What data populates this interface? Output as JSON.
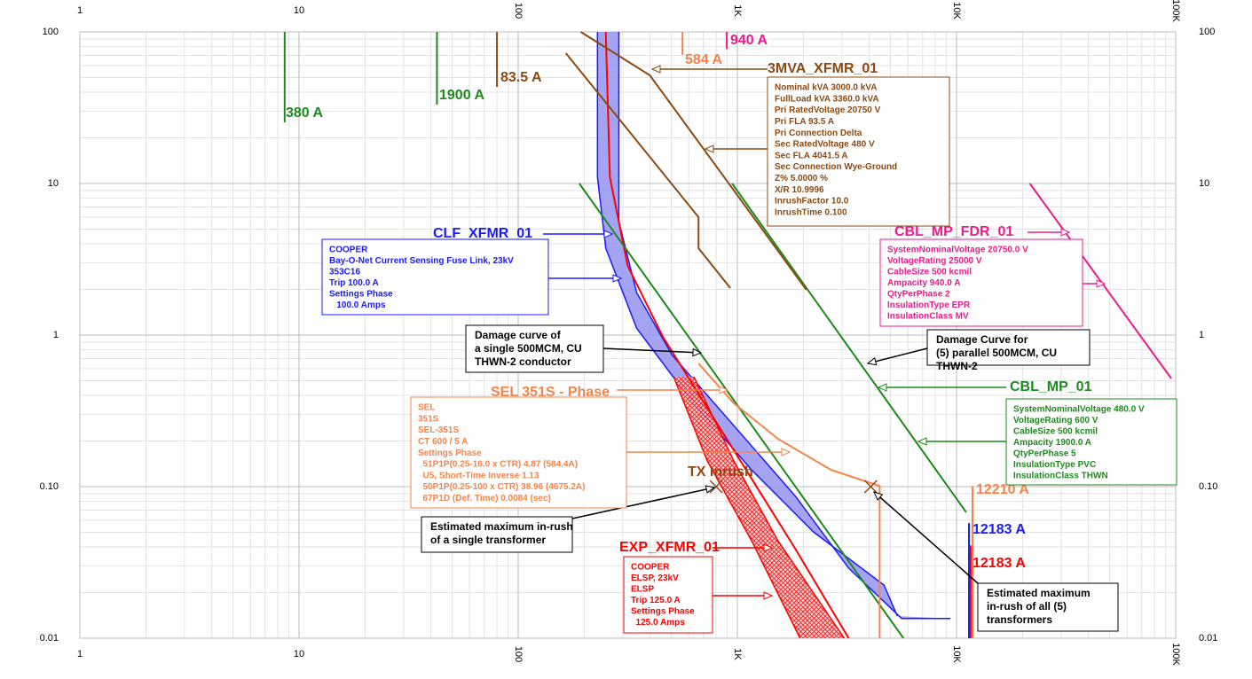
{
  "chart_data": {
    "type": "line",
    "xscale": "log",
    "yscale": "log",
    "grid": true,
    "xlim": [
      1,
      100000
    ],
    "ylim": [
      0.01,
      100
    ],
    "xticks": [
      1,
      10,
      100,
      {
        "value": 1000,
        "label": "1K"
      },
      {
        "value": 10000,
        "label": "10K"
      },
      {
        "value": 100000,
        "label": "100K"
      }
    ],
    "yticks": [
      0.01,
      {
        "value": 0.1,
        "label": "0.10"
      },
      1,
      10,
      100
    ],
    "series": [
      {
        "color": "#ff0000",
        "x": [
          251,
          262,
          316,
          458,
          729,
          1161,
          1846,
          3220
        ],
        "values": [
          100,
          11,
          2.86,
          0.97,
          0.331,
          0.113,
          0.0385,
          0.01
        ]
      },
      {
        "color": "#1e8a1e",
        "x": [
          190,
          5730
        ],
        "values": [
          10,
          0.01
        ]
      },
      {
        "color": "#1e8a1e",
        "x": [
          946,
          11070
        ],
        "values": [
          10,
          0.0677
        ]
      },
      {
        "color": "#8b4a14",
        "x": [
          193,
          399,
          2064
        ],
        "values": [
          100,
          51.7,
          1.99
        ]
      },
      {
        "color": "#8b4a14",
        "x": [
          165,
          665,
          665,
          929
        ],
        "values": [
          72.4,
          6.0,
          3.74,
          2.04
        ]
      },
      {
        "color": "#ee1b8c",
        "x": [
          21600,
          95500
        ],
        "values": [
          10,
          0.517
        ]
      },
      {
        "color": "#f5834a",
        "x": [
          665,
          963,
          1531,
          2675,
          4460,
          4460
        ],
        "values": [
          0.65,
          0.355,
          0.207,
          0.129,
          0.101,
          0.01
        ]
      },
      {
        "color": "#1e8a1e",
        "x": [
          8.6,
          8.6
        ],
        "values": [
          100,
          25.3
        ]
      },
      {
        "color": "#1e8a1e",
        "x": [
          42.6,
          42.6
        ],
        "values": [
          100,
          33.1
        ]
      },
      {
        "color": "#8b4a14",
        "x": [
          80,
          80
        ],
        "values": [
          100,
          43.4
        ]
      },
      {
        "color": "#f5834a",
        "x": [
          562,
          562
        ],
        "values": [
          100,
          70.5
        ]
      },
      {
        "color": "#ee1b8c",
        "x": [
          895,
          895
        ],
        "values": [
          100,
          77
        ]
      },
      {
        "color": "#f5834a",
        "x": [
          11830,
          11830
        ],
        "values": [
          0.101,
          0.01
        ]
      },
      {
        "color": "#1a1aff",
        "x": [
          11400,
          11400
        ],
        "values": [
          0.0575,
          0.01
        ]
      },
      {
        "color": "#ff0000",
        "x": [
          11600,
          11600
        ],
        "values": [
          0.041,
          0.01
        ]
      }
    ],
    "bands": [
      {
        "color": "#1a1aff",
        "fill": "#9a9af2",
        "edges": [
          {
            "x": [
              230,
              230,
              251,
              347,
              605,
              1161,
              2223,
              4670,
              5370
            ],
            "values": [
              100,
              11,
              3.74,
              1.11,
              0.38,
              0.129,
              0.0503,
              0.0224,
              0.014
            ]
          },
          {
            "x": [
              288,
              288,
              347,
              503,
              963,
              1846,
              3220,
              5620,
              9380
            ],
            "values": [
              100,
              5.6,
              1.91,
              0.74,
              0.253,
              0.086,
              0.029,
              0.0135,
              0.0135
            ]
          }
        ]
      },
      {
        "color": "#ff0000",
        "fill": "url(#hatch)",
        "edges": [
          {
            "x": [
              512,
              729,
              1161,
              1933
            ],
            "values": [
              0.531,
              0.148,
              0.044,
              0.01
            ]
          },
          {
            "x": [
              634,
              963,
              1531,
              3075
            ],
            "values": [
              0.531,
              0.148,
              0.044,
              0.01
            ]
          }
        ]
      }
    ],
    "markers": {
      "color": "#8b4a14",
      "x": [
        800,
        4060
      ],
      "values": [
        0.1,
        0.1
      ]
    },
    "labels": [
      {
        "text": "940 A",
        "color": "#ee1b8c"
      },
      {
        "text": "584 A",
        "color": "#f5834a"
      },
      {
        "text": "83.5 A",
        "color": "#8b4a14"
      },
      {
        "text": "1900 A",
        "color": "#1e8a1e"
      },
      {
        "text": "380 A",
        "color": "#1e8a1e"
      },
      {
        "text": "TX Inrush",
        "color": "#8b4a14"
      },
      {
        "text": "12210 A",
        "color": "#f5834a"
      },
      {
        "text": "12183 A",
        "color": "#1a1aff"
      },
      {
        "text": "12183 A",
        "color": "#ff0000"
      }
    ],
    "devices": [
      {
        "name": "3MVA_XFMR_01",
        "color": "#8b4a14",
        "lines": [
          "Nominal kVA 3000.0 kVA",
          "FullLoad kVA 3360.0 kVA",
          "Pri RatedVoltage 20750 V",
          "Pri FLA 93.5 A",
          "Pri Connection Delta",
          "Sec RatedVoltage 480 V",
          "Sec FLA 4041.5 A",
          "Sec Connection Wye-Ground",
          "Z% 5.0000 %",
          "X/R 10.9996",
          "InrushFactor 10.0",
          "InrushTime 0.100"
        ]
      },
      {
        "name": "CLF_XFMR_01",
        "color": "#1a1aff",
        "lines": [
          "COOPER",
          "Bay-O-Net Current Sensing Fuse Link, 23kV",
          "353C16",
          "Trip 100.0 A",
          "Settings Phase",
          "   100.0 Amps"
        ]
      },
      {
        "name": "CBL_MP_FDR_01",
        "color": "#ee1b8c",
        "lines": [
          "SystemNominalVoltage 20750.0 V",
          "VoltageRating 25000 V",
          "CableSize 500 kcmil",
          "Ampacity 940.0 A",
          "QtyPerPhase 2",
          "InsulationType EPR",
          "InsulationClass MV"
        ]
      },
      {
        "name": "CBL_MP_01",
        "color": "#1e8a1e",
        "lines": [
          "SystemNominalVoltage 480.0 V",
          "VoltageRating 600 V",
          "CableSize 500 kcmil",
          "Ampacity 1900.0 A",
          "QtyPerPhase 5",
          "InsulationType PVC",
          "InsulationClass THWN"
        ]
      },
      {
        "name": "SEL 351S - Phase",
        "color": "#f5834a",
        "lines": [
          "SEL",
          "351S",
          "SEL-351S",
          "CT 600 / 5 A",
          "Settings Phase",
          "  51P1P(0.25-16.0 x CTR) 4.87 (584.4A)",
          "  U5, Short-Time Inverse 1.13",
          "  50P1P(0.25-100 x CTR) 38.96 (4675.2A)",
          "  67P1D (Def. Time) 0.0084 (sec)"
        ]
      },
      {
        "name": "EXP_XFMR_01",
        "color": "#ff0000",
        "lines": [
          "COOPER",
          "ELSP, 23kV",
          "ELSP",
          "Trip 125.0 A",
          "Settings Phase",
          "  125.0 Amps"
        ]
      }
    ],
    "notes": [
      {
        "lines": [
          "Damage curve of",
          "a single 500MCM, CU",
          "THWN-2 conductor"
        ]
      },
      {
        "lines": [
          "Damage Curve for",
          "(5) parallel 500MCM, CU",
          "THWN-2"
        ]
      },
      {
        "lines": [
          "Estimated maximum in-rush",
          "of a single transformer"
        ]
      },
      {
        "lines": [
          "Estimated maximum",
          "in-rush of all (5)",
          "transformers"
        ]
      }
    ]
  }
}
